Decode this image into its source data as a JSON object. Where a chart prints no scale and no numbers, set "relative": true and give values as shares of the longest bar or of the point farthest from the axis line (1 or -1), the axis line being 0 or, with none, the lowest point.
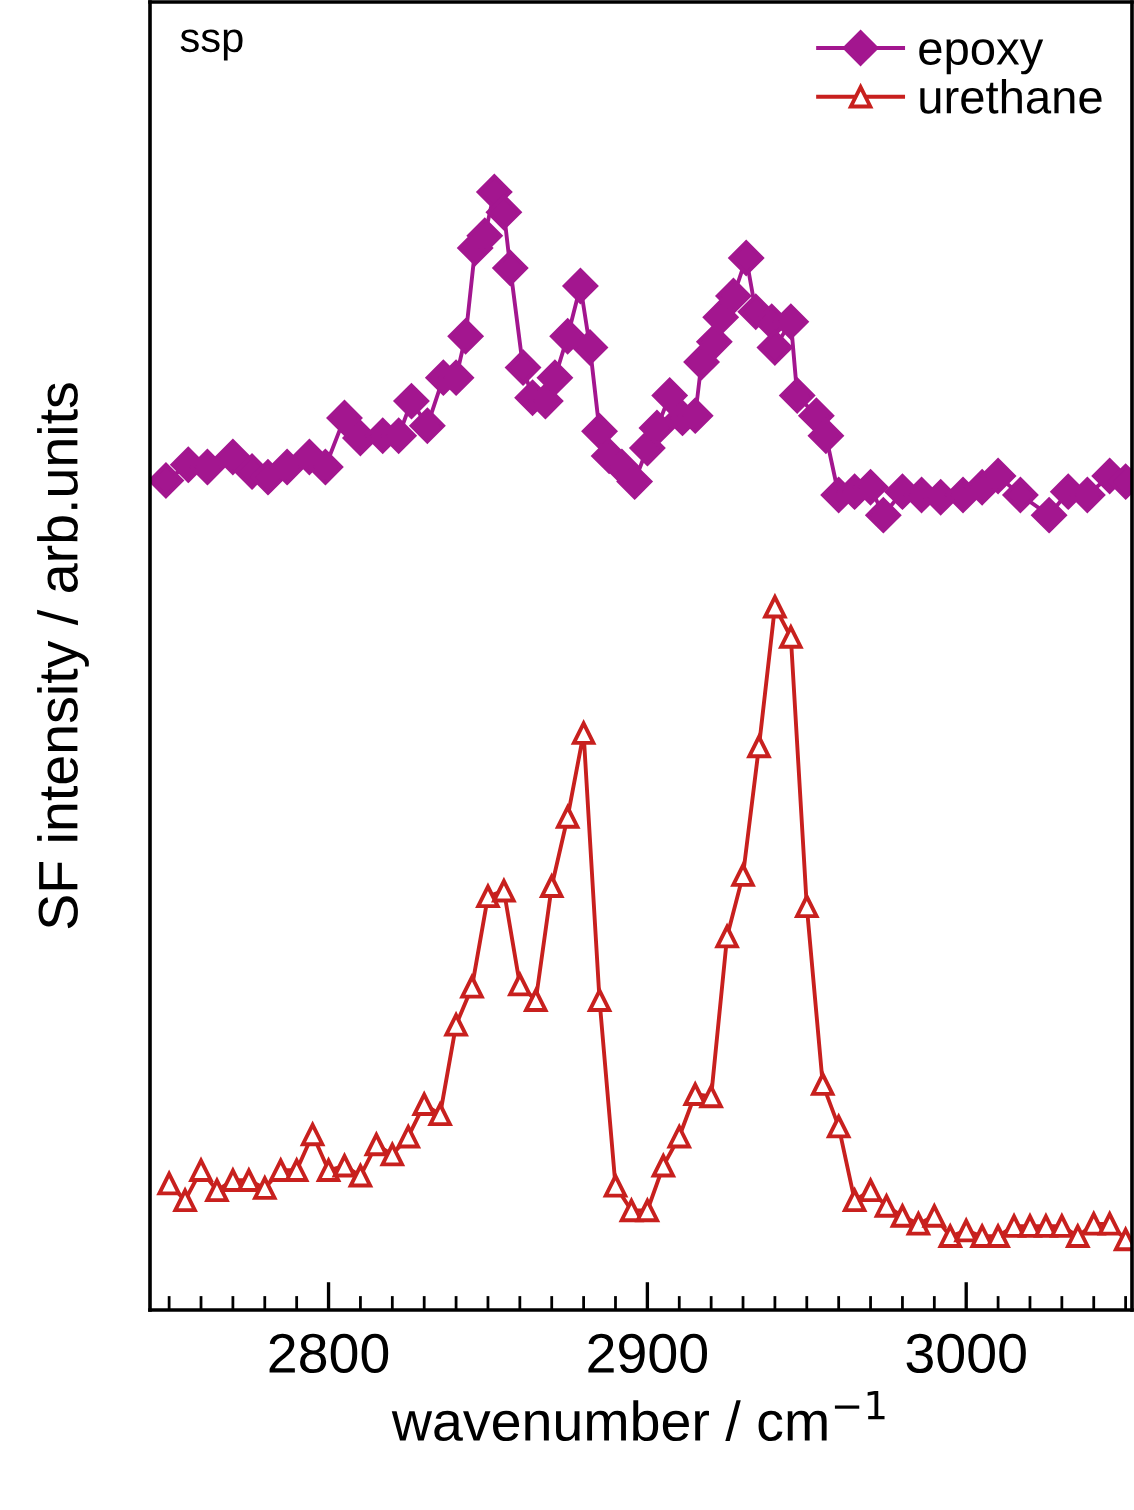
{
  "chart_data": {
    "type": "line",
    "relative": true,
    "xlabel": "wavenumber / cm$^{−1}$",
    "ylabel": "SF intensity / arb.units",
    "annotations": [
      "ssp"
    ],
    "xlim": [
      2744,
      3052
    ],
    "xticks": [
      {
        "value": 2750,
        "label": null
      },
      {
        "value": 2760,
        "label": null
      },
      {
        "value": 2770,
        "label": null
      },
      {
        "value": 2780,
        "label": null
      },
      {
        "value": 2790,
        "label": null
      },
      2800,
      {
        "value": 2810,
        "label": null
      },
      {
        "value": 2820,
        "label": null
      },
      {
        "value": 2830,
        "label": null
      },
      {
        "value": 2840,
        "label": null
      },
      {
        "value": 2850,
        "label": null
      },
      {
        "value": 2860,
        "label": null
      },
      {
        "value": 2870,
        "label": null
      },
      {
        "value": 2880,
        "label": null
      },
      {
        "value": 2890,
        "label": null
      },
      2900,
      {
        "value": 2910,
        "label": null
      },
      {
        "value": 2920,
        "label": null
      },
      {
        "value": 2930,
        "label": null
      },
      {
        "value": 2940,
        "label": null
      },
      {
        "value": 2950,
        "label": null
      },
      {
        "value": 2960,
        "label": null
      },
      {
        "value": 2970,
        "label": null
      },
      {
        "value": 2980,
        "label": null
      },
      {
        "value": 2990,
        "label": null
      },
      3000,
      {
        "value": 3010,
        "label": null
      },
      {
        "value": 3020,
        "label": null
      },
      {
        "value": 3030,
        "label": null
      },
      {
        "value": 3040,
        "label": null
      },
      {
        "value": 3050,
        "label": null
      }
    ],
    "legend": "top right",
    "grid": false,
    "series": [
      {
        "name": "epoxy",
        "color": "#a3168f",
        "marker": "diamond",
        "x": [
          2749,
          2756,
          2762,
          2770,
          2776,
          2781,
          2787,
          2794,
          2799,
          2805,
          2810,
          2817,
          2822,
          2826,
          2831,
          2836,
          2840,
          2843,
          2846,
          2849,
          2852,
          2855,
          2857,
          2861,
          2864,
          2868,
          2871,
          2875,
          2879,
          2882,
          2885,
          2888,
          2892,
          2896,
          2900,
          2903,
          2907,
          2911,
          2915,
          2917,
          2921,
          2923,
          2927,
          2931,
          2934,
          2939,
          2940,
          2945,
          2947,
          2953,
          2956,
          2960,
          2965,
          2970,
          2974,
          2980,
          2986,
          2992,
          2999,
          3005,
          3010,
          3017,
          3026,
          3032,
          3038,
          3045,
          3050
        ],
        "values": [
          0.742,
          0.756,
          0.754,
          0.763,
          0.75,
          0.745,
          0.754,
          0.763,
          0.754,
          0.798,
          0.78,
          0.782,
          0.782,
          0.813,
          0.791,
          0.834,
          0.834,
          0.871,
          0.95,
          0.961,
          1.0,
          0.982,
          0.932,
          0.843,
          0.816,
          0.813,
          0.834,
          0.871,
          0.916,
          0.861,
          0.786,
          0.764,
          0.754,
          0.741,
          0.771,
          0.789,
          0.818,
          0.798,
          0.8,
          0.848,
          0.866,
          0.888,
          0.907,
          0.941,
          0.893,
          0.884,
          0.861,
          0.884,
          0.818,
          0.8,
          0.782,
          0.729,
          0.732,
          0.736,
          0.711,
          0.732,
          0.729,
          0.727,
          0.729,
          0.736,
          0.746,
          0.729,
          0.711,
          0.732,
          0.729,
          0.746,
          0.741
        ]
      },
      {
        "name": "urethane",
        "color": "#c8201e",
        "marker": "triangle",
        "x": [
          2750,
          2755,
          2760,
          2765,
          2770,
          2775,
          2780,
          2785,
          2790,
          2795,
          2800,
          2805,
          2810,
          2815,
          2820,
          2825,
          2830,
          2835,
          2840,
          2845,
          2850,
          2855,
          2860,
          2865,
          2870,
          2875,
          2880,
          2885,
          2890,
          2895,
          2900,
          2905,
          2910,
          2915,
          2920,
          2925,
          2930,
          2935,
          2940,
          2945,
          2950,
          2955,
          2960,
          2965,
          2970,
          2975,
          2980,
          2985,
          2990,
          2995,
          3000,
          3005,
          3010,
          3015,
          3020,
          3025,
          3030,
          3035,
          3040,
          3045,
          3050
        ],
        "values": [
          0.113,
          0.098,
          0.125,
          0.107,
          0.116,
          0.116,
          0.109,
          0.125,
          0.125,
          0.157,
          0.125,
          0.129,
          0.12,
          0.148,
          0.139,
          0.155,
          0.184,
          0.175,
          0.255,
          0.289,
          0.37,
          0.375,
          0.291,
          0.277,
          0.379,
          0.441,
          0.516,
          0.277,
          0.111,
          0.089,
          0.089,
          0.129,
          0.155,
          0.193,
          0.191,
          0.334,
          0.389,
          0.504,
          0.629,
          0.602,
          0.361,
          0.202,
          0.164,
          0.098,
          0.107,
          0.093,
          0.084,
          0.077,
          0.084,
          0.066,
          0.071,
          0.066,
          0.066,
          0.075,
          0.075,
          0.075,
          0.075,
          0.066,
          0.077,
          0.077,
          0.063
        ]
      }
    ]
  }
}
